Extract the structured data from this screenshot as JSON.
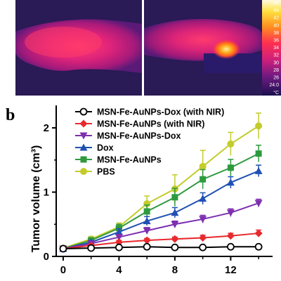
{
  "panel_b_label": "b",
  "thermal_panel": {
    "colorbar_ticks": [
      "46",
      "44",
      "42",
      "40",
      "38",
      "36",
      "34",
      "32",
      "30",
      "28",
      "26",
      "24.0"
    ],
    "colorbar_unit": "°C"
  },
  "chart_data": {
    "type": "line",
    "title": "",
    "xlabel": "",
    "ylabel": "Tumor volume (cm³)",
    "xlim": [
      -0.5,
      15
    ],
    "ylim": [
      0,
      2.35
    ],
    "xticks": [
      0,
      4,
      8,
      12
    ],
    "yticks": [
      0,
      1,
      2
    ],
    "x": [
      0,
      2,
      4,
      6,
      8,
      10,
      12,
      14
    ],
    "legend_position": "top-left",
    "series": [
      {
        "name": "MSN-Fe-AuNPs-Dox (with NIR)",
        "color": "#000000",
        "marker": "circle-open",
        "values": [
          0.12,
          0.13,
          0.14,
          0.15,
          0.14,
          0.14,
          0.15,
          0.15
        ],
        "errors": [
          0.02,
          0.02,
          0.02,
          0.02,
          0.02,
          0.02,
          0.02,
          0.03
        ]
      },
      {
        "name": "MSN-Fe-AuNPs (with NIR)",
        "color": "#e8292d",
        "marker": "diamond",
        "values": [
          0.12,
          0.17,
          0.22,
          0.25,
          0.27,
          0.29,
          0.32,
          0.36
        ],
        "errors": [
          0.02,
          0.02,
          0.03,
          0.03,
          0.03,
          0.04,
          0.04,
          0.05
        ]
      },
      {
        "name": "MSN-Fe-AuNPs-Dox",
        "color": "#7d2fb0",
        "marker": "triangle-down",
        "values": [
          0.12,
          0.2,
          0.3,
          0.4,
          0.5,
          0.58,
          0.68,
          0.83
        ],
        "errors": [
          0.02,
          0.03,
          0.04,
          0.05,
          0.05,
          0.06,
          0.06,
          0.06
        ]
      },
      {
        "name": "Dox",
        "color": "#2050b4",
        "marker": "triangle-up",
        "values": [
          0.12,
          0.22,
          0.38,
          0.55,
          0.68,
          0.9,
          1.15,
          1.33
        ],
        "errors": [
          0.02,
          0.03,
          0.05,
          0.07,
          0.08,
          0.09,
          0.09,
          0.09
        ]
      },
      {
        "name": "MSN-Fe-AuNPs",
        "color": "#2e9a3e",
        "marker": "square",
        "values": [
          0.12,
          0.25,
          0.44,
          0.7,
          0.92,
          1.2,
          1.38,
          1.6
        ],
        "errors": [
          0.02,
          0.04,
          0.06,
          0.1,
          0.14,
          0.15,
          0.13,
          0.13
        ]
      },
      {
        "name": "PBS",
        "color": "#c3cc2a",
        "marker": "circle",
        "values": [
          0.13,
          0.27,
          0.46,
          0.82,
          1.05,
          1.4,
          1.75,
          2.03
        ],
        "errors": [
          0.02,
          0.04,
          0.06,
          0.12,
          0.22,
          0.25,
          0.18,
          0.2
        ]
      }
    ]
  }
}
